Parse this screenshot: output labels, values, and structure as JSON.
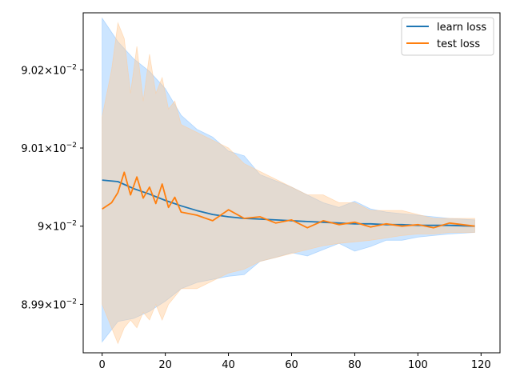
{
  "chart_data": {
    "type": "line",
    "title": "",
    "xlabel": "",
    "ylabel": "",
    "xlim": [
      -6,
      126
    ],
    "ylim": [
      0.089838,
      0.090273
    ],
    "xticks": [
      0,
      20,
      40,
      60,
      80,
      100,
      120
    ],
    "xtick_labels": [
      "0",
      "20",
      "40",
      "60",
      "80",
      "100",
      "120"
    ],
    "yticks": [
      0.0899,
      0.09,
      0.0901,
      0.0902
    ],
    "ytick_labels": [
      {
        "mantissa": "8.99",
        "base": "10",
        "exp": "−2"
      },
      {
        "mantissa": "9",
        "base": "10",
        "exp": "−2"
      },
      {
        "mantissa": "9.01",
        "base": "10",
        "exp": "−2"
      },
      {
        "mantissa": "9.02",
        "base": "10",
        "exp": "−2"
      }
    ],
    "grid": false,
    "legend_position": "top-right",
    "series": [
      {
        "name": "learn loss",
        "color": "#1f77b4",
        "band_color": "#8ec5ff",
        "x": [
          0,
          5,
          10,
          15,
          20,
          25,
          30,
          35,
          40,
          45,
          50,
          55,
          60,
          65,
          70,
          75,
          80,
          85,
          90,
          95,
          100,
          105,
          110,
          118
        ],
        "y": [
          0.090059,
          0.090057,
          0.090048,
          0.090041,
          0.090033,
          0.090026,
          0.09002,
          0.090015,
          0.090012,
          0.09001,
          0.090009,
          0.090008,
          0.090007,
          0.090006,
          0.090005,
          0.090004,
          0.090003,
          0.090003,
          0.090002,
          0.090002,
          0.090001,
          0.090001,
          0.090001,
          0.09
        ],
        "band_upper": [
          0.090266,
          0.090236,
          0.090214,
          0.090198,
          0.090176,
          0.090142,
          0.090124,
          0.090114,
          0.090096,
          0.09009,
          0.090066,
          0.090058,
          0.09005,
          0.09004,
          0.09003,
          0.090024,
          0.090032,
          0.090022,
          0.090018,
          0.090016,
          0.090014,
          0.090012,
          0.09001,
          0.090008
        ],
        "band_lower": [
          0.089852,
          0.089878,
          0.089882,
          0.089891,
          0.089904,
          0.08992,
          0.089928,
          0.089932,
          0.089936,
          0.089938,
          0.089955,
          0.08996,
          0.089966,
          0.089962,
          0.08997,
          0.089978,
          0.089968,
          0.089974,
          0.089982,
          0.089982,
          0.089986,
          0.089988,
          0.08999,
          0.089992
        ]
      },
      {
        "name": "test loss",
        "color": "#ff7f0e",
        "band_color": "#ffcc99",
        "x": [
          0,
          3,
          5,
          7,
          9,
          11,
          13,
          15,
          17,
          19,
          21,
          23,
          25,
          30,
          35,
          40,
          45,
          50,
          55,
          60,
          65,
          70,
          75,
          80,
          85,
          90,
          95,
          100,
          105,
          110,
          118
        ],
        "y": [
          0.090022,
          0.09003,
          0.090043,
          0.090069,
          0.09004,
          0.090063,
          0.090036,
          0.09005,
          0.090029,
          0.090054,
          0.090024,
          0.090037,
          0.090018,
          0.090014,
          0.090007,
          0.090021,
          0.09001,
          0.090012,
          0.090004,
          0.090008,
          0.089998,
          0.090007,
          0.090002,
          0.090005,
          0.089999,
          0.090003,
          0.09,
          0.090002,
          0.089998,
          0.090004,
          0.09
        ],
        "band_upper": [
          0.09014,
          0.0902,
          0.09026,
          0.09024,
          0.09017,
          0.09023,
          0.09016,
          0.09022,
          0.09017,
          0.09019,
          0.09015,
          0.09016,
          0.09013,
          0.09012,
          0.09011,
          0.0901,
          0.09008,
          0.09007,
          0.09006,
          0.09005,
          0.09004,
          0.09004,
          0.09003,
          0.09003,
          0.09002,
          0.09002,
          0.09002,
          0.090015,
          0.09001,
          0.09001,
          0.09001
        ],
        "band_lower": [
          0.0899,
          0.08987,
          0.08985,
          0.08987,
          0.08988,
          0.08987,
          0.08989,
          0.08988,
          0.0899,
          0.08988,
          0.0899,
          0.08991,
          0.08992,
          0.08992,
          0.08993,
          0.08994,
          0.089945,
          0.089955,
          0.08996,
          0.089965,
          0.08997,
          0.089975,
          0.089978,
          0.08998,
          0.089982,
          0.089985,
          0.089988,
          0.08999,
          0.08999,
          0.089992,
          0.089992
        ]
      }
    ]
  }
}
